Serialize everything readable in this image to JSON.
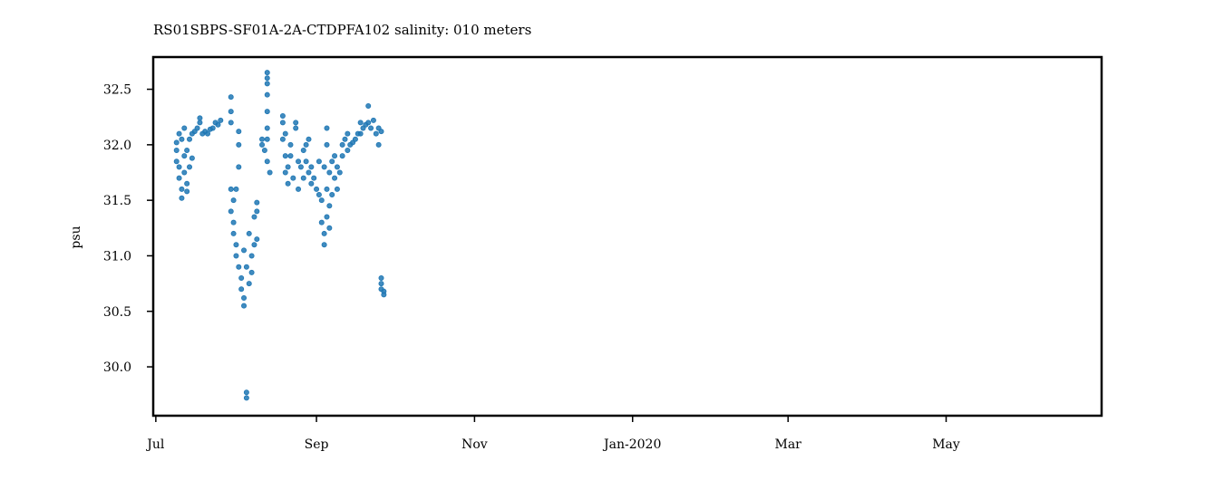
{
  "chart_data": {
    "type": "scatter",
    "title": "RS01SBPS-SF01A-2A-CTDPFA102 salinity: 010 meters",
    "xlabel": "",
    "ylabel": "psu",
    "x_ticks": [
      {
        "date": "2019-07-01",
        "label": "Jul"
      },
      {
        "date": "2019-09-01",
        "label": "Sep"
      },
      {
        "date": "2019-11-01",
        "label": "Nov"
      },
      {
        "date": "2020-01-01",
        "label": "Jan-2020"
      },
      {
        "date": "2020-03-01",
        "label": "Mar"
      },
      {
        "date": "2020-05-01",
        "label": "May"
      }
    ],
    "y_ticks": [
      30.0,
      30.5,
      31.0,
      31.5,
      32.0,
      32.5
    ],
    "xlim": [
      "2019-06-30",
      "2020-06-30"
    ],
    "ylim": [
      29.56,
      32.79
    ],
    "grid": false,
    "legend": "none",
    "marker_color": "#1f77b4",
    "series": [
      {
        "points": [
          [
            "2019-07-09",
            32.02
          ],
          [
            "2019-07-09",
            31.85
          ],
          [
            "2019-07-09",
            31.95
          ],
          [
            "2019-07-10",
            32.1
          ],
          [
            "2019-07-10",
            31.8
          ],
          [
            "2019-07-10",
            31.7
          ],
          [
            "2019-07-11",
            32.05
          ],
          [
            "2019-07-11",
            31.6
          ],
          [
            "2019-07-11",
            31.52
          ],
          [
            "2019-07-12",
            31.9
          ],
          [
            "2019-07-12",
            31.75
          ],
          [
            "2019-07-12",
            32.15
          ],
          [
            "2019-07-13",
            31.65
          ],
          [
            "2019-07-13",
            31.58
          ],
          [
            "2019-07-13",
            31.95
          ],
          [
            "2019-07-14",
            32.05
          ],
          [
            "2019-07-14",
            31.8
          ],
          [
            "2019-07-15",
            32.1
          ],
          [
            "2019-07-15",
            31.88
          ],
          [
            "2019-07-16",
            32.12
          ],
          [
            "2019-07-17",
            32.15
          ],
          [
            "2019-07-18",
            32.2
          ],
          [
            "2019-07-18",
            32.24
          ],
          [
            "2019-07-19",
            32.1
          ],
          [
            "2019-07-20",
            32.12
          ],
          [
            "2019-07-21",
            32.1
          ],
          [
            "2019-07-22",
            32.14
          ],
          [
            "2019-07-23",
            32.15
          ],
          [
            "2019-07-24",
            32.2
          ],
          [
            "2019-07-25",
            32.18
          ],
          [
            "2019-07-26",
            32.22
          ],
          [
            "2019-07-30",
            32.43
          ],
          [
            "2019-07-30",
            32.3
          ],
          [
            "2019-07-30",
            32.2
          ],
          [
            "2019-07-30",
            31.6
          ],
          [
            "2019-07-30",
            31.4
          ],
          [
            "2019-07-31",
            31.3
          ],
          [
            "2019-07-31",
            31.5
          ],
          [
            "2019-07-31",
            31.2
          ],
          [
            "2019-08-01",
            31.1
          ],
          [
            "2019-08-01",
            31.0
          ],
          [
            "2019-08-01",
            31.6
          ],
          [
            "2019-08-02",
            32.12
          ],
          [
            "2019-08-02",
            32.0
          ],
          [
            "2019-08-02",
            31.8
          ],
          [
            "2019-08-02",
            30.9
          ],
          [
            "2019-08-03",
            30.8
          ],
          [
            "2019-08-03",
            30.7
          ],
          [
            "2019-08-04",
            30.55
          ],
          [
            "2019-08-04",
            30.62
          ],
          [
            "2019-08-04",
            31.05
          ],
          [
            "2019-08-05",
            29.77
          ],
          [
            "2019-08-05",
            29.72
          ],
          [
            "2019-08-05",
            30.9
          ],
          [
            "2019-08-06",
            30.75
          ],
          [
            "2019-08-06",
            31.2
          ],
          [
            "2019-08-07",
            31.0
          ],
          [
            "2019-08-07",
            30.85
          ],
          [
            "2019-08-08",
            31.35
          ],
          [
            "2019-08-08",
            31.1
          ],
          [
            "2019-08-09",
            31.48
          ],
          [
            "2019-08-09",
            31.4
          ],
          [
            "2019-08-09",
            31.15
          ],
          [
            "2019-08-11",
            32.05
          ],
          [
            "2019-08-11",
            32.0
          ],
          [
            "2019-08-12",
            31.95
          ],
          [
            "2019-08-13",
            32.65
          ],
          [
            "2019-08-13",
            32.6
          ],
          [
            "2019-08-13",
            32.55
          ],
          [
            "2019-08-13",
            32.45
          ],
          [
            "2019-08-13",
            32.3
          ],
          [
            "2019-08-13",
            32.15
          ],
          [
            "2019-08-13",
            32.05
          ],
          [
            "2019-08-13",
            31.85
          ],
          [
            "2019-08-14",
            31.75
          ],
          [
            "2019-08-19",
            32.2
          ],
          [
            "2019-08-19",
            32.05
          ],
          [
            "2019-08-19",
            32.26
          ],
          [
            "2019-08-20",
            31.9
          ],
          [
            "2019-08-20",
            31.75
          ],
          [
            "2019-08-20",
            32.1
          ],
          [
            "2019-08-21",
            31.65
          ],
          [
            "2019-08-21",
            31.8
          ],
          [
            "2019-08-22",
            31.9
          ],
          [
            "2019-08-22",
            32.0
          ],
          [
            "2019-08-23",
            31.7
          ],
          [
            "2019-08-24",
            32.2
          ],
          [
            "2019-08-24",
            32.15
          ],
          [
            "2019-08-25",
            31.85
          ],
          [
            "2019-08-25",
            31.6
          ],
          [
            "2019-08-26",
            31.8
          ],
          [
            "2019-08-27",
            31.7
          ],
          [
            "2019-08-27",
            31.95
          ],
          [
            "2019-08-28",
            31.85
          ],
          [
            "2019-08-28",
            32.0
          ],
          [
            "2019-08-29",
            32.05
          ],
          [
            "2019-08-29",
            31.75
          ],
          [
            "2019-08-30",
            31.8
          ],
          [
            "2019-08-30",
            31.65
          ],
          [
            "2019-08-31",
            31.7
          ],
          [
            "2019-09-01",
            31.6
          ],
          [
            "2019-09-02",
            31.55
          ],
          [
            "2019-09-02",
            31.85
          ],
          [
            "2019-09-03",
            31.5
          ],
          [
            "2019-09-03",
            31.3
          ],
          [
            "2019-09-04",
            31.2
          ],
          [
            "2019-09-04",
            31.1
          ],
          [
            "2019-09-04",
            31.8
          ],
          [
            "2019-09-05",
            32.15
          ],
          [
            "2019-09-05",
            32.0
          ],
          [
            "2019-09-05",
            31.6
          ],
          [
            "2019-09-05",
            31.35
          ],
          [
            "2019-09-06",
            31.45
          ],
          [
            "2019-09-06",
            31.75
          ],
          [
            "2019-09-06",
            31.25
          ],
          [
            "2019-09-07",
            31.85
          ],
          [
            "2019-09-07",
            31.55
          ],
          [
            "2019-09-08",
            31.9
          ],
          [
            "2019-09-08",
            31.7
          ],
          [
            "2019-09-09",
            31.6
          ],
          [
            "2019-09-09",
            31.8
          ],
          [
            "2019-09-10",
            31.75
          ],
          [
            "2019-09-11",
            31.9
          ],
          [
            "2019-09-11",
            32.0
          ],
          [
            "2019-09-12",
            32.05
          ],
          [
            "2019-09-13",
            31.95
          ],
          [
            "2019-09-13",
            32.1
          ],
          [
            "2019-09-14",
            32.0
          ],
          [
            "2019-09-15",
            32.02
          ],
          [
            "2019-09-16",
            32.05
          ],
          [
            "2019-09-17",
            32.1
          ],
          [
            "2019-09-18",
            32.2
          ],
          [
            "2019-09-18",
            32.1
          ],
          [
            "2019-09-19",
            32.15
          ],
          [
            "2019-09-20",
            32.18
          ],
          [
            "2019-09-21",
            32.2
          ],
          [
            "2019-09-21",
            32.35
          ],
          [
            "2019-09-22",
            32.15
          ],
          [
            "2019-09-23",
            32.22
          ],
          [
            "2019-09-24",
            32.1
          ],
          [
            "2019-09-25",
            32.15
          ],
          [
            "2019-09-25",
            32.0
          ],
          [
            "2019-09-26",
            32.12
          ],
          [
            "2019-09-26",
            30.8
          ],
          [
            "2019-09-26",
            30.75
          ],
          [
            "2019-09-26",
            30.7
          ],
          [
            "2019-09-27",
            30.68
          ],
          [
            "2019-09-27",
            30.65
          ]
        ]
      }
    ]
  }
}
